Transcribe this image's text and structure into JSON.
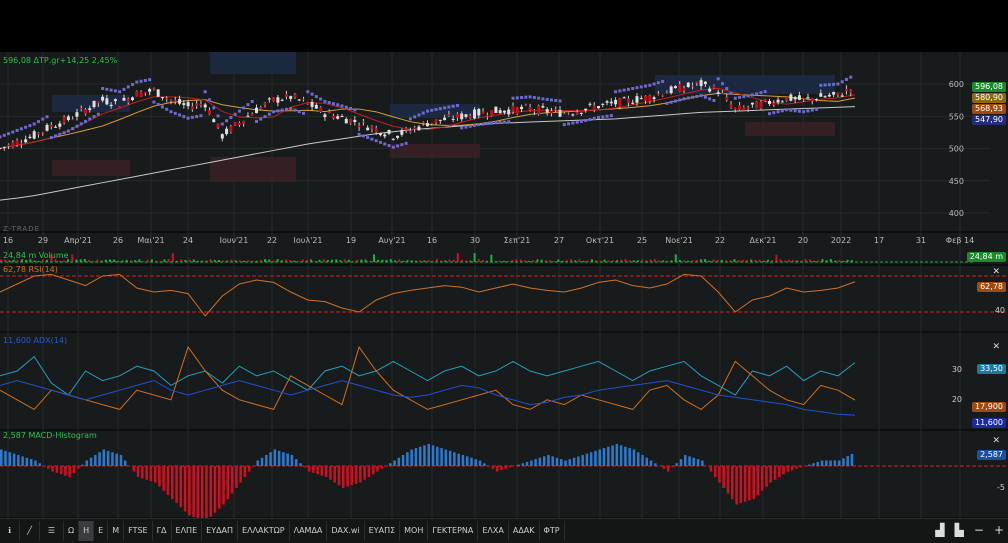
{
  "header": {
    "price": "596,08",
    "symbol": "ΔΤΡ.gr",
    "change": "+14,25",
    "change_pct": "2,45%"
  },
  "watermark": "Z-TRADE",
  "price_axis": [
    "600",
    "550",
    "500",
    "450",
    "400"
  ],
  "x_labels": [
    "16",
    "29",
    "Απρ'21",
    "26",
    "Μαι'21",
    "24",
    "Ιουν'21",
    "22",
    "Ιουλ'21",
    "19",
    "Αυγ'21",
    "16",
    "30",
    "Σεπ'21",
    "27",
    "Οκτ'21",
    "25",
    "Νοε'21",
    "22",
    "Δεκ'21",
    "20",
    "2022",
    "17",
    "31",
    "Φεβ 14"
  ],
  "price_tags": [
    {
      "v": "596,08",
      "c": "#1a8a2a"
    },
    {
      "v": "580,90",
      "c": "#8a6a10"
    },
    {
      "v": "568,93",
      "c": "#a04a10"
    },
    {
      "v": "547,90",
      "c": "#262a7a"
    }
  ],
  "panels": {
    "volume": {
      "label": "24,84 m Volume",
      "tag": "24,84 m"
    },
    "rsi": {
      "label": "62,78 RSI(14)",
      "tag": "62,78",
      "axis": "40"
    },
    "adx": {
      "label": "11,600 ADX(14)",
      "tags": [
        "33,50",
        "17,900",
        "11,600"
      ],
      "axis": [
        "30",
        "20"
      ]
    },
    "macd": {
      "label": "2,587 MACD-Histogram",
      "tag": "2,587",
      "axis": "-5"
    }
  },
  "toolbar": {
    "items": [
      "Ω",
      "H",
      "E",
      "M",
      "FTSE",
      "ΓΔ",
      "ΕΛΠΕ",
      "ΕΥΔΑΠ",
      "ΕΛΛΑΚΤΩΡ",
      "ΛΑΜΔΑ",
      "DAX.wi",
      "ΕΥΑΠΣ",
      "ΜΟΗ",
      "ΓΕΚΤΕΡΝΑ",
      "ΕΛΧΑ",
      "ΑΔΑΚ",
      "ΦΤΡ"
    ],
    "active": "H",
    "right_icons": [
      "chart-type-icon",
      "indicators-icon",
      "zoom-out-icon",
      "zoom-in-icon"
    ],
    "right_glyphs": [
      "▟",
      "▙",
      "−",
      "+"
    ]
  },
  "chart_data": {
    "type": "line",
    "title": "ΔΤΡ.gr",
    "ylim": [
      380,
      620
    ],
    "close": [
      500,
      510,
      520,
      535,
      545,
      560,
      575,
      570,
      585,
      590,
      575,
      565,
      570,
      520,
      540,
      560,
      575,
      580,
      570,
      555,
      548,
      540,
      530,
      520,
      528,
      540,
      545,
      550,
      555,
      558,
      560,
      562,
      558,
      555,
      560,
      566,
      570,
      575,
      580,
      588,
      595,
      600,
      590,
      560,
      565,
      572,
      578,
      575,
      580,
      582,
      596.08
    ],
    "ma_long": [
      420,
      423,
      427,
      432,
      437,
      442,
      447,
      452,
      457,
      462,
      467,
      472,
      477,
      482,
      487,
      492,
      497,
      502,
      507,
      511,
      515,
      519,
      523,
      526,
      529,
      531,
      533,
      535,
      537,
      539,
      540,
      541,
      542,
      543,
      544,
      545,
      546,
      548,
      550,
      552,
      554,
      556,
      557,
      558,
      559,
      560,
      561,
      562,
      563,
      564,
      565
    ],
    "rsi": [
      50,
      60,
      70,
      72,
      65,
      58,
      70,
      72,
      55,
      50,
      52,
      48,
      20,
      45,
      60,
      65,
      62,
      50,
      40,
      38,
      30,
      25,
      40,
      48,
      52,
      55,
      58,
      56,
      50,
      55,
      60,
      55,
      52,
      50,
      55,
      62,
      65,
      58,
      55,
      60,
      72,
      70,
      50,
      25,
      40,
      45,
      55,
      50,
      52,
      55,
      62.78
    ],
    "adx_plus": [
      28,
      30,
      36,
      25,
      20,
      30,
      26,
      28,
      32,
      30,
      24,
      28,
      30,
      25,
      32,
      28,
      30,
      26,
      22,
      30,
      32,
      28,
      30,
      34,
      30,
      26,
      30,
      32,
      28,
      30,
      34,
      30,
      28,
      30,
      32,
      34,
      30,
      26,
      30,
      32,
      34,
      28,
      24,
      20,
      30,
      28,
      32,
      26,
      30,
      28,
      33.5
    ],
    "adx_minus": [
      22,
      18,
      14,
      22,
      20,
      18,
      16,
      14,
      22,
      20,
      18,
      40,
      30,
      22,
      18,
      16,
      14,
      28,
      24,
      20,
      16,
      40,
      30,
      22,
      18,
      14,
      16,
      18,
      20,
      22,
      16,
      14,
      18,
      16,
      20,
      18,
      16,
      14,
      22,
      24,
      18,
      14,
      20,
      34,
      28,
      22,
      18,
      16,
      24,
      22,
      17.9
    ],
    "adx": [
      24,
      26,
      24,
      22,
      20,
      18,
      20,
      22,
      24,
      26,
      22,
      20,
      22,
      24,
      26,
      24,
      22,
      20,
      22,
      24,
      26,
      24,
      22,
      20,
      19,
      20,
      22,
      24,
      23,
      20,
      18,
      16,
      17,
      19,
      20,
      22,
      23,
      24,
      25,
      26,
      24,
      22,
      20,
      19,
      18,
      17,
      16,
      14,
      13,
      12,
      11.6
    ],
    "macd_hist": [
      3,
      2,
      1,
      -1,
      -2,
      1,
      3,
      2,
      -2,
      -3,
      -6,
      -9,
      -10,
      -7,
      -3,
      1,
      3,
      2,
      -1,
      -2,
      -4,
      -3,
      -1,
      1,
      3,
      4,
      3,
      2,
      1,
      -1,
      0,
      1,
      2,
      1,
      2,
      3,
      4,
      3,
      1,
      -1,
      2,
      1,
      -3,
      -7,
      -6,
      -3,
      -1,
      0,
      1,
      1,
      2.587
    ]
  }
}
